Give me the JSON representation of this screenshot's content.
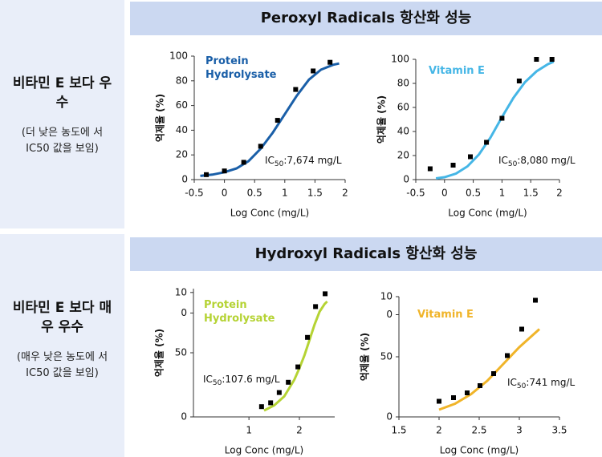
{
  "sections": [
    {
      "header": "Peroxyl Radicals 항산화 성능",
      "side_title": "비타민 E 보다 우수",
      "side_note": "(더 낮은 농도에 서 IC50 값을 보임)"
    },
    {
      "header": "Hydroxyl Radicals 항산화 성능",
      "side_title": "비타민 E 보다 매우 우수",
      "side_note": "(매우 낮은 농도에 서 IC50 값을 보임)"
    }
  ],
  "chart_data": [
    {
      "type": "scatter",
      "x_label": "Log Conc (mg/L)",
      "y_label": "억제율 (%)",
      "xlim": [
        -0.5,
        2.0
      ],
      "xticks": [
        -0.5,
        0,
        0.5,
        1.0,
        1.5,
        2.0
      ],
      "ylim": [
        0,
        100
      ],
      "yticks": [
        0,
        20,
        40,
        60,
        80,
        100
      ],
      "annotation": {
        "prefix": "IC",
        "sub": "50",
        "text": ":7,674 mg/L"
      },
      "series": [
        {
          "name": "Protein Hydrolysate",
          "color": "#1a5fa8",
          "marker_color": "#000000",
          "x": [
            -0.3,
            0,
            0.32,
            0.6,
            0.88,
            1.18,
            1.47,
            1.75
          ],
          "values": [
            4,
            7,
            14,
            27,
            48,
            73,
            88,
            95
          ],
          "fit_x": [
            -0.4,
            -0.2,
            0,
            0.2,
            0.4,
            0.6,
            0.8,
            1.0,
            1.2,
            1.4,
            1.6,
            1.8,
            1.9
          ],
          "fit_values": [
            3,
            4,
            6,
            9,
            15,
            25,
            38,
            53,
            68,
            81,
            89,
            93,
            94
          ]
        }
      ]
    },
    {
      "type": "scatter",
      "x_label": "Log Conc (mg/L)",
      "y_label": "억제율 (%)",
      "xlim": [
        -0.5,
        2.0
      ],
      "xticks": [
        -0.5,
        0,
        0.5,
        1.0,
        1.5,
        2.0
      ],
      "ylim": [
        0,
        100
      ],
      "yticks": [
        0,
        20,
        40,
        60,
        80,
        100
      ],
      "annotation": {
        "prefix": "IC",
        "sub": "50",
        "text": ":8,080 mg/L"
      },
      "series": [
        {
          "name": "Vitamin E",
          "color": "#45b6e6",
          "marker_color": "#000000",
          "x": [
            -0.25,
            0.15,
            0.45,
            0.73,
            1.0,
            1.3,
            1.6,
            1.87
          ],
          "values": [
            9,
            12,
            19,
            31,
            51,
            82,
            100,
            100
          ],
          "fit_x": [
            -0.15,
            0,
            0.2,
            0.4,
            0.6,
            0.8,
            1.0,
            1.2,
            1.4,
            1.6,
            1.8,
            1.9
          ],
          "fit_values": [
            1,
            2,
            5,
            11,
            21,
            35,
            52,
            68,
            81,
            90,
            96,
            98
          ]
        }
      ]
    },
    {
      "type": "scatter",
      "x_label": "Log Conc (mg/L)",
      "y_label": "억제율 (%)",
      "xlim": [
        -0.1,
        2.7
      ],
      "xticks": [
        1,
        2
      ],
      "ylim": [
        0,
        100
      ],
      "yticks": [
        0,
        50,
        {
          "value": 81,
          "label": "0"
        },
        {
          "value": 97,
          "label": "10"
        }
      ],
      "annotation": {
        "prefix": "IC",
        "sub": "50",
        "text": ":107.6 mg/L"
      },
      "series": [
        {
          "name": "Protein Hydrolysate",
          "color": "#b5d334",
          "marker_color": "#000000",
          "x": [
            1.25,
            1.43,
            1.6,
            1.78,
            1.97,
            2.16,
            2.32,
            2.51
          ],
          "values": [
            8,
            11,
            19,
            27,
            39,
            62,
            86,
            96
          ],
          "fit_x": [
            1.3,
            1.5,
            1.7,
            1.9,
            2.0,
            2.1,
            2.2,
            2.3,
            2.4,
            2.5,
            2.55
          ],
          "fit_values": [
            5,
            9,
            16,
            29,
            38,
            48,
            60,
            72,
            82,
            88,
            90
          ]
        }
      ]
    },
    {
      "type": "scatter",
      "x_label": "Log Conc (mg/L)",
      "y_label": "억제율 (%)",
      "xlim": [
        1.5,
        3.5
      ],
      "xticks": [
        1.5,
        2.0,
        2.5,
        3.0,
        3.5
      ],
      "ylim": [
        0,
        100
      ],
      "yticks": [
        0,
        50,
        {
          "value": 85,
          "label": "0"
        },
        {
          "value": 100,
          "label": "10"
        }
      ],
      "annotation": {
        "prefix": "IC",
        "sub": "50",
        "text": ":741 mg/L"
      },
      "series": [
        {
          "name": "Vitamin E",
          "color": "#f0b429",
          "marker_color": "#000000",
          "x": [
            2.0,
            2.18,
            2.35,
            2.51,
            2.68,
            2.85,
            3.03,
            3.2
          ],
          "values": [
            13,
            16,
            20,
            26,
            36,
            51,
            73,
            97
          ],
          "fit_x": [
            2.0,
            2.2,
            2.4,
            2.6,
            2.8,
            3.0,
            3.2,
            3.25
          ],
          "fit_values": [
            6,
            11,
            19,
            30,
            44,
            58,
            70,
            73
          ]
        }
      ]
    }
  ]
}
